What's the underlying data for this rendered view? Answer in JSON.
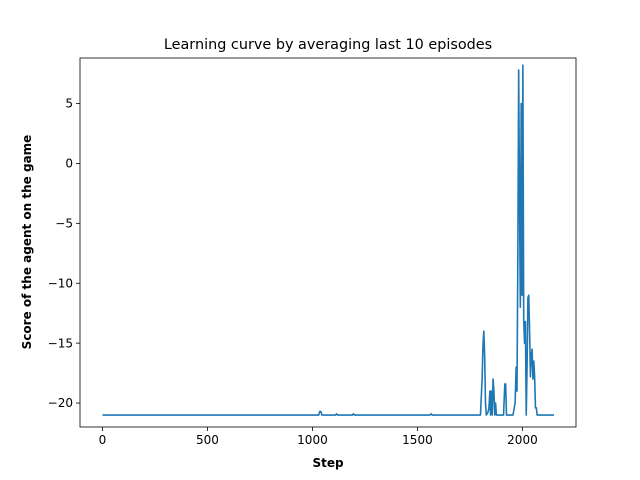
{
  "chart_data": {
    "type": "line",
    "title": "Learning curve by averaging last 10 episodes",
    "xlabel": "Step",
    "ylabel": "Score of the agent on the game",
    "xlim": [
      -107,
      2255
    ],
    "ylim": [
      -22.0,
      8.8
    ],
    "xticks": [
      0,
      500,
      1000,
      1500,
      2000
    ],
    "yticks": [
      -20,
      -15,
      -10,
      -5,
      0,
      5
    ],
    "xtick_labels": [
      "0",
      "500",
      "1000",
      "1500",
      "2000"
    ],
    "ytick_labels": [
      "−20",
      "−15",
      "−10",
      "−5",
      "0",
      "5"
    ],
    "grid": false,
    "series": [
      {
        "color": "#1f77b4",
        "x": [
          0,
          1030,
          1035,
          1040,
          1045,
          1110,
          1115,
          1120,
          1190,
          1195,
          1200,
          1560,
          1565,
          1570,
          1800,
          1808,
          1812,
          1816,
          1820,
          1824,
          1828,
          1835,
          1840,
          1845,
          1848,
          1852,
          1856,
          1860,
          1864,
          1868,
          1872,
          1876,
          1880,
          1890,
          1900,
          1910,
          1916,
          1920,
          1924,
          1928,
          1935,
          1945,
          1955,
          1965,
          1970,
          1974,
          1978,
          1982,
          1986,
          1990,
          1994,
          1998,
          2002,
          2006,
          2010,
          2014,
          2018,
          2022,
          2026,
          2030,
          2034,
          2038,
          2042,
          2046,
          2050,
          2054,
          2058,
          2062,
          2066,
          2070,
          2074,
          2078,
          2082,
          2086,
          2090,
          2100,
          2150
        ],
        "y": [
          -21,
          -21,
          -20.7,
          -20.7,
          -21,
          -21,
          -20.9,
          -21,
          -21,
          -20.9,
          -21,
          -21,
          -20.9,
          -21,
          -21,
          -18,
          -15.2,
          -14,
          -16,
          -20,
          -21,
          -20.8,
          -20.5,
          -19,
          -21,
          -19,
          -21,
          -18,
          -19,
          -21,
          -20,
          -21,
          -21,
          -21,
          -21,
          -21,
          -18.4,
          -18.4,
          -21,
          -21,
          -21,
          -21,
          -21,
          -20,
          -17,
          -19,
          -8,
          7.8,
          -3,
          -12,
          5,
          -11,
          8.2,
          -13,
          -15,
          -13.2,
          -21,
          -17,
          -11.2,
          -11,
          -14,
          -17.8,
          -16,
          -15.5,
          -18,
          -16.5,
          -17.8,
          -20.4,
          -20.4,
          -21,
          -21,
          -21,
          -21,
          -21,
          -21,
          -21,
          -21
        ]
      }
    ]
  }
}
